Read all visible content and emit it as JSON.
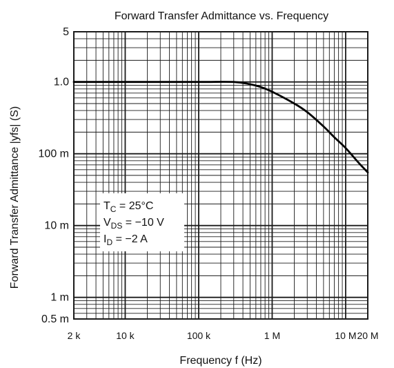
{
  "chart_data": {
    "type": "line",
    "title": "Forward Transfer Admittance vs. Frequency",
    "xlabel": "Frequency  f  (Hz)",
    "ylabel": "Forward Transfer Admittance  |yfs|  (S)",
    "x_scale": "log",
    "y_scale": "log",
    "xlim": [
      2000,
      20000000
    ],
    "ylim": [
      0.0005,
      5
    ],
    "grid": true,
    "x_ticks": [
      {
        "value": 2000,
        "label": "2 k"
      },
      {
        "value": 10000,
        "label": "10 k"
      },
      {
        "value": 100000,
        "label": "100 k"
      },
      {
        "value": 1000000,
        "label": "1 M"
      },
      {
        "value": 10000000,
        "label": "10 M"
      },
      {
        "value": 20000000,
        "label": "20 M"
      }
    ],
    "y_ticks": [
      {
        "value": 5,
        "label": "5"
      },
      {
        "value": 1,
        "label": "1.0"
      },
      {
        "value": 0.1,
        "label": "100 m"
      },
      {
        "value": 0.01,
        "label": "10 m"
      },
      {
        "value": 0.001,
        "label": "1 m"
      },
      {
        "value": 0.0005,
        "label": "0.5 m"
      }
    ],
    "annotation": {
      "lines": [
        {
          "main": "T",
          "sub": "C",
          "rest": " = 25°C"
        },
        {
          "main": "V",
          "sub": "DS",
          "rest": " = −10 V"
        },
        {
          "main": "I",
          "sub": "D",
          "rest": " = −2 A"
        }
      ]
    },
    "series": [
      {
        "x": [
          2000,
          10000,
          100000,
          300000,
          500000,
          700000,
          1000000,
          2000000,
          3000000,
          5000000,
          7000000,
          10000000,
          15000000,
          20000000
        ],
        "y": [
          1.0,
          1.0,
          1.0,
          1.0,
          0.93,
          0.85,
          0.73,
          0.5,
          0.38,
          0.24,
          0.17,
          0.12,
          0.075,
          0.055
        ]
      }
    ],
    "colors": {
      "grid": "#1a1a1a",
      "curve": "#000000",
      "background": "#ffffff"
    }
  }
}
